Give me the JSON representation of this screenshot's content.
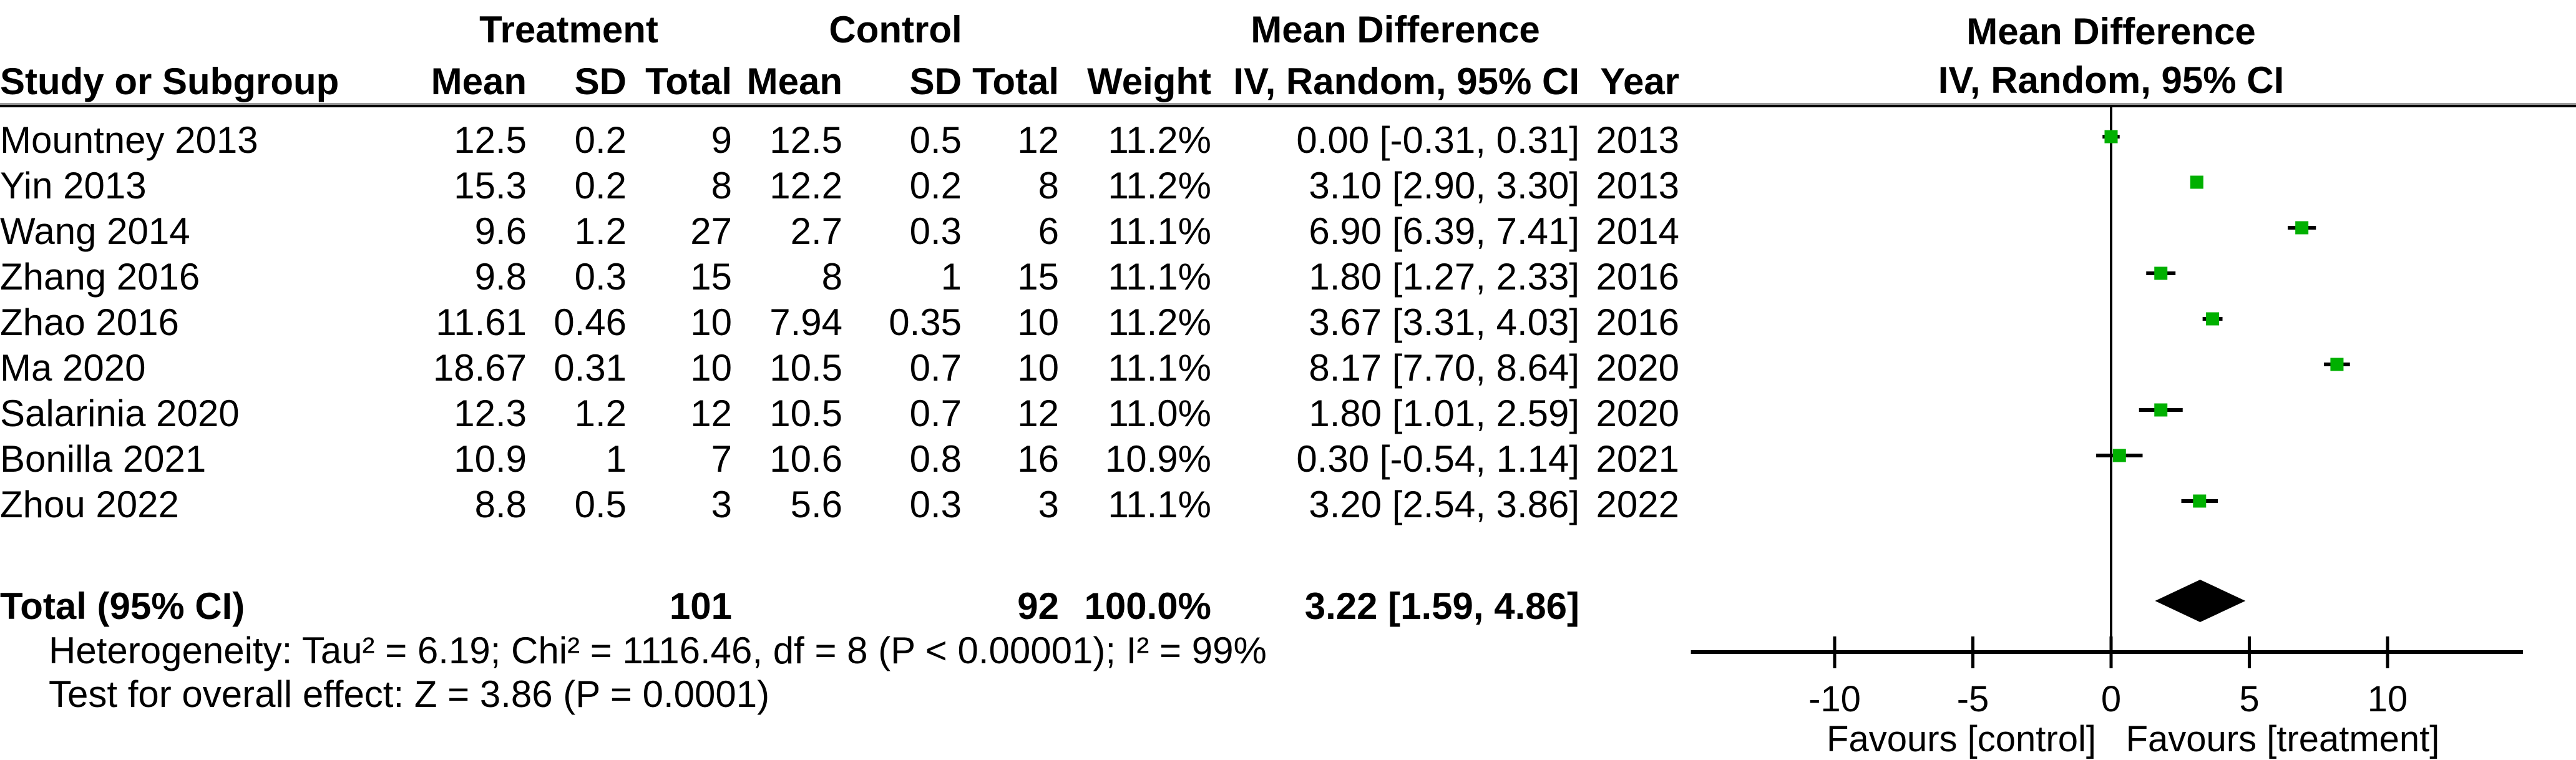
{
  "table": {
    "group_header": {
      "treatment": "Treatment",
      "control": "Control",
      "mean_difference": "Mean Difference"
    },
    "header": {
      "study": "Study or Subgroup",
      "mean": "Mean",
      "sd": "SD",
      "total": "Total",
      "weight": "Weight",
      "iv": "IV, Random, 95% CI",
      "year": "Year"
    },
    "rows": [
      {
        "name": "Mountney 2013",
        "t_mean": "12.5",
        "t_sd": "0.2",
        "t_total": "9",
        "c_mean": "12.5",
        "c_sd": "0.5",
        "c_total": "12",
        "weight": "11.2%",
        "md_ci": "0.00 [-0.31, 0.31]",
        "year": "2013"
      },
      {
        "name": "Yin 2013",
        "t_mean": "15.3",
        "t_sd": "0.2",
        "t_total": "8",
        "c_mean": "12.2",
        "c_sd": "0.2",
        "c_total": "8",
        "weight": "11.2%",
        "md_ci": "3.10 [2.90, 3.30]",
        "year": "2013"
      },
      {
        "name": "Wang 2014",
        "t_mean": "9.6",
        "t_sd": "1.2",
        "t_total": "27",
        "c_mean": "2.7",
        "c_sd": "0.3",
        "c_total": "6",
        "weight": "11.1%",
        "md_ci": "6.90 [6.39, 7.41]",
        "year": "2014"
      },
      {
        "name": "Zhang 2016",
        "t_mean": "9.8",
        "t_sd": "0.3",
        "t_total": "15",
        "c_mean": "8",
        "c_sd": "1",
        "c_total": "15",
        "weight": "11.1%",
        "md_ci": "1.80 [1.27, 2.33]",
        "year": "2016"
      },
      {
        "name": "Zhao 2016",
        "t_mean": "11.61",
        "t_sd": "0.46",
        "t_total": "10",
        "c_mean": "7.94",
        "c_sd": "0.35",
        "c_total": "10",
        "weight": "11.2%",
        "md_ci": "3.67 [3.31, 4.03]",
        "year": "2016"
      },
      {
        "name": "Ma 2020",
        "t_mean": "18.67",
        "t_sd": "0.31",
        "t_total": "10",
        "c_mean": "10.5",
        "c_sd": "0.7",
        "c_total": "10",
        "weight": "11.1%",
        "md_ci": "8.17 [7.70, 8.64]",
        "year": "2020"
      },
      {
        "name": "Salarinia 2020",
        "t_mean": "12.3",
        "t_sd": "1.2",
        "t_total": "12",
        "c_mean": "10.5",
        "c_sd": "0.7",
        "c_total": "12",
        "weight": "11.0%",
        "md_ci": "1.80 [1.01, 2.59]",
        "year": "2020"
      },
      {
        "name": "Bonilla 2021",
        "t_mean": "10.9",
        "t_sd": "1",
        "t_total": "7",
        "c_mean": "10.6",
        "c_sd": "0.8",
        "c_total": "16",
        "weight": "10.9%",
        "md_ci": "0.30 [-0.54, 1.14]",
        "year": "2021"
      },
      {
        "name": "Zhou 2022",
        "t_mean": "8.8",
        "t_sd": "0.5",
        "t_total": "3",
        "c_mean": "5.6",
        "c_sd": "0.3",
        "c_total": "3",
        "weight": "11.1%",
        "md_ci": "3.20 [2.54, 3.86]",
        "year": "2022"
      }
    ],
    "total": {
      "name": "Total (95% CI)",
      "t_total": "101",
      "c_total": "92",
      "weight": "100.0%",
      "md_ci": "3.22 [1.59, 4.86]"
    }
  },
  "right_panel": {
    "title": "Mean Difference",
    "subtitle": "IV, Random, 95% CI"
  },
  "footnotes": {
    "heterogeneity": "Heterogeneity: Tau² = 6.19; Chi² = 1116.46, df = 8 (P < 0.00001); I² = 99%",
    "overall_effect": "Test for overall effect: Z = 3.86 (P = 0.0001)"
  },
  "colors": {
    "marker_green": "#00B000",
    "diamond_black": "#000000",
    "line_black": "#000000",
    "separator_gray": "#9b9b9b"
  },
  "chart_data": {
    "type": "scatter",
    "subtype": "forest-plot",
    "title": "Mean Difference IV, Random, 95% CI",
    "x_axis": {
      "ticks": [
        -10,
        -5,
        0,
        5,
        10
      ],
      "range": [
        -15.2,
        14.9
      ],
      "zero_line": 0,
      "favours_left": "Favours [control]",
      "favours_right": "Favours [treatment]"
    },
    "series": [
      {
        "name": "Mountney 2013",
        "year": 2013,
        "md": 0.0,
        "ci": [
          -0.31,
          0.31
        ],
        "weight_pct": 11.2
      },
      {
        "name": "Yin 2013",
        "year": 2013,
        "md": 3.1,
        "ci": [
          2.9,
          3.3
        ],
        "weight_pct": 11.2
      },
      {
        "name": "Wang 2014",
        "year": 2014,
        "md": 6.9,
        "ci": [
          6.39,
          7.41
        ],
        "weight_pct": 11.1
      },
      {
        "name": "Zhang 2016",
        "year": 2016,
        "md": 1.8,
        "ci": [
          1.27,
          2.33
        ],
        "weight_pct": 11.1
      },
      {
        "name": "Zhao 2016",
        "year": 2016,
        "md": 3.67,
        "ci": [
          3.31,
          4.03
        ],
        "weight_pct": 11.2
      },
      {
        "name": "Ma 2020",
        "year": 2020,
        "md": 8.17,
        "ci": [
          7.7,
          8.64
        ],
        "weight_pct": 11.1
      },
      {
        "name": "Salarinia 2020",
        "year": 2020,
        "md": 1.8,
        "ci": [
          1.01,
          2.59
        ],
        "weight_pct": 11.0
      },
      {
        "name": "Bonilla 2021",
        "year": 2021,
        "md": 0.3,
        "ci": [
          -0.54,
          1.14
        ],
        "weight_pct": 10.9
      },
      {
        "name": "Zhou 2022",
        "year": 2022,
        "md": 3.2,
        "ci": [
          2.54,
          3.86
        ],
        "weight_pct": 11.1
      }
    ],
    "total": {
      "name": "Total (95% CI)",
      "md": 3.22,
      "ci": [
        1.59,
        4.86
      ],
      "weight_pct": 100.0
    }
  }
}
